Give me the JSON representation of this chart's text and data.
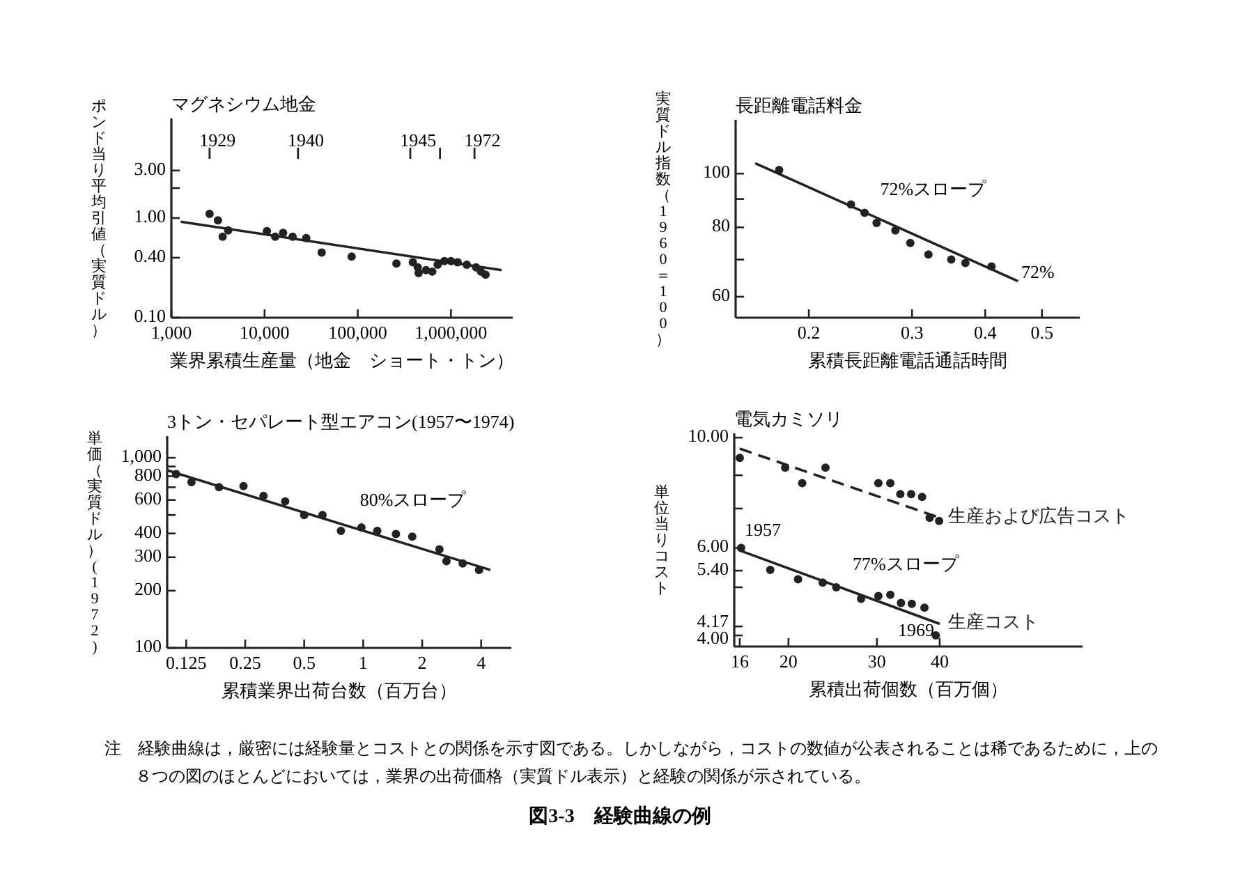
{
  "chart_data": [
    {
      "type": "scatter",
      "title": "マグネシウム地金",
      "xlabel": "業界累積生産量（地金　ショート・トン）",
      "ylabel": "ポンド当り平均引値（実質ドル）",
      "log": "xy",
      "xlim": [
        1000,
        4600000
      ],
      "xticks": [
        {
          "value": 1000,
          "label": "1,000"
        },
        {
          "value": 10000,
          "label": "10,000"
        },
        {
          "value": 100000,
          "label": "100,000"
        },
        {
          "value": 1000000,
          "label": "1,000,000"
        }
      ],
      "ylim": [
        0.1,
        10
      ],
      "yticks": [
        {
          "value": 0.1,
          "label": "0.10"
        },
        {
          "value": 0.4,
          "label": "0.40"
        },
        {
          "value": 1,
          "label": "1.00"
        },
        {
          "value": 2,
          "label": null
        },
        {
          "value": 3,
          "label": "3.00"
        }
      ],
      "annotations": [
        "1929",
        "1940",
        "1945",
        "1972"
      ],
      "series": [
        {
          "type": "scatter",
          "marker": "circle",
          "color": "#222222",
          "x": [
            2570,
            3160,
            3550,
            4070,
            10600,
            13000,
            15800,
            20000,
            28000,
            41000,
            86000,
            260000,
            390000,
            440000,
            450000,
            540000,
            630000,
            720000,
            850000,
            1000000,
            1180000,
            1480000,
            1860000,
            2100000,
            2350000
          ],
          "values": [
            1.1,
            0.95,
            0.65,
            0.75,
            0.74,
            0.65,
            0.71,
            0.65,
            0.63,
            0.45,
            0.41,
            0.35,
            0.36,
            0.32,
            0.28,
            0.3,
            0.29,
            0.34,
            0.37,
            0.37,
            0.36,
            0.34,
            0.32,
            0.29,
            0.27
          ]
        },
        {
          "type": "line",
          "color": "#222222",
          "line_style": "solid",
          "x": [
            1260,
            3500000
          ],
          "values": [
            0.92,
            0.3
          ]
        }
      ]
    },
    {
      "type": "scatter",
      "title": "長距離電話料金",
      "xlabel": "累積長距離電話通話時間",
      "ylabel": "実質ドル指数（1960＝100）",
      "log": "xy",
      "xlim": [
        0.15,
        0.58
      ],
      "xticks": [
        0.2,
        0.3,
        0.4,
        0.5
      ],
      "ylim": [
        55,
        125
      ],
      "yticks": [
        60,
        {
          "value": 70,
          "label": null
        },
        80,
        {
          "value": 90,
          "label": null
        },
        100
      ],
      "series": [
        {
          "type": "scatter",
          "marker": "circle",
          "color": "#222222",
          "x": [
            0.178,
            0.236,
            0.249,
            0.261,
            0.281,
            0.298,
            0.32,
            0.35,
            0.37,
            0.41
          ],
          "values": [
            101.5,
            88,
            85,
            81.5,
            79,
            75,
            71.5,
            70,
            69,
            68
          ]
        },
        {
          "type": "line",
          "color": "#222222",
          "line_style": "solid",
          "x": [
            0.162,
            0.455
          ],
          "values": [
            104.4,
            64
          ]
        }
      ],
      "annotations": [
        "72%スロープ",
        "72%"
      ]
    },
    {
      "type": "scatter",
      "title": "3トン・セパレート型エアコン(1957〜1974)",
      "xlabel": "累積業界出荷台数（百万台）",
      "ylabel": "単価（実質ドル）(1972)",
      "log": "xy",
      "xlim": [
        0.1,
        5.7
      ],
      "xticks": [
        0.125,
        0.25,
        0.5,
        1,
        2,
        4
      ],
      "ylim": [
        100,
        1300
      ],
      "yticks": [
        100,
        200,
        300,
        400,
        {
          "value": 500,
          "label": null
        },
        600,
        {
          "value": 700,
          "label": null
        },
        800,
        {
          "value": 900,
          "label": null
        },
        {
          "value": 1000,
          "label": "1,000"
        }
      ],
      "series": [
        {
          "type": "scatter",
          "marker": "circle",
          "color": "#222222",
          "x": [
            0.111,
            0.133,
            0.184,
            0.245,
            0.31,
            0.4,
            0.5,
            0.62,
            0.77,
            0.98,
            1.18,
            1.47,
            1.78,
            2.45,
            2.66,
            3.22,
            3.9
          ],
          "values": [
            820,
            745,
            700,
            710,
            630,
            590,
            500,
            500,
            413,
            430,
            413,
            397,
            385,
            330,
            286,
            278,
            257
          ]
        },
        {
          "type": "line",
          "color": "#222222",
          "line_style": "solid",
          "x": [
            0.1,
            4.46
          ],
          "values": [
            860,
            257
          ]
        }
      ],
      "annotations": [
        "80%スロープ"
      ]
    },
    {
      "type": "scatter",
      "title": "電気カミソリ",
      "xlabel": "累積出荷個数（百万個）",
      "ylabel": "単位当りコスト",
      "log": "xy",
      "xlim": [
        15.6,
        77
      ],
      "xticks": [
        16,
        20,
        30,
        40
      ],
      "ylim": [
        3.8,
        10.2
      ],
      "yticks": [
        {
          "value": 4,
          "label": "4.00"
        },
        {
          "value": 4.17,
          "label": "4.17"
        },
        {
          "value": 5,
          "label": null
        },
        {
          "value": 5.4,
          "label": "5.40"
        },
        {
          "value": 6,
          "label": "6.00"
        },
        {
          "value": 7.2,
          "label": null
        },
        {
          "value": 8.4,
          "label": null
        },
        {
          "value": 10,
          "label": "10.00"
        }
      ],
      "series": [
        {
          "type": "scatter",
          "marker": "circle",
          "color": "#222222",
          "x": [
            16,
            19.7,
            21.3,
            23.7,
            30.2,
            31.9,
            33.4,
            35.1,
            36.9,
            38.2,
            39.9
          ],
          "values": [
            9.1,
            8.7,
            8.1,
            8.7,
            8.1,
            8.1,
            7.7,
            7.7,
            7.6,
            6.9,
            6.8
          ]
        },
        {
          "type": "line",
          "name": "生産および広告コスト",
          "color": "#222222",
          "line_style": "dashed",
          "x": [
            16,
            40
          ],
          "values": [
            9.5,
            6.9
          ]
        },
        {
          "type": "scatter",
          "marker": "circle",
          "color": "#222222",
          "x": [
            16.1,
            18.4,
            20.9,
            23.4,
            24.9,
            27.9,
            30.2,
            31.9,
            33.5,
            35.2,
            37.3,
            39.3
          ],
          "values": [
            6.0,
            5.42,
            5.19,
            5.11,
            5.0,
            4.74,
            4.8,
            4.83,
            4.65,
            4.63,
            4.55,
            4.0
          ]
        },
        {
          "type": "line",
          "name": "生産コスト",
          "color": "#222222",
          "line_style": "solid",
          "x": [
            16,
            40
          ],
          "values": [
            5.93,
            4.22
          ]
        }
      ],
      "annotations": [
        "77%スロープ",
        "1957",
        "1969"
      ]
    },
    {
      "type": "other",
      "title": "図3-3　経験曲線の例",
      "annotations": [
        "注　経験曲線は，厳密には経験量とコストとの関係を示す図である。しかしながら，コストの数値が公表されることは稀であるために，上の８つの図のほとんどにおいては，業界の出荷価格（実質ドル表示）と経験の関係が示されている。"
      ]
    }
  ]
}
